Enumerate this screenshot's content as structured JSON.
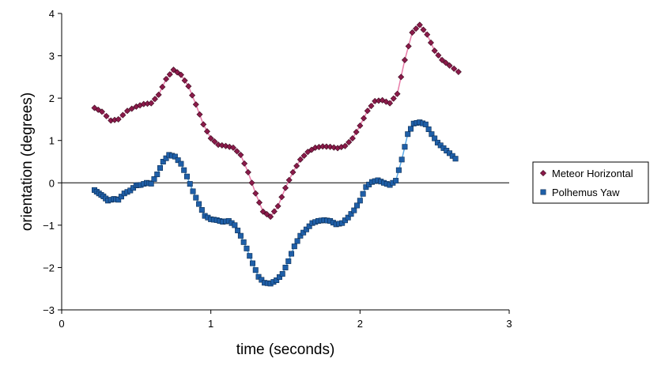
{
  "chart_data": {
    "type": "scatter",
    "title": "",
    "xlabel": "time (seconds)",
    "ylabel": "orientation (degrees)",
    "xlim": [
      0,
      3
    ],
    "ylim": [
      -3,
      4
    ],
    "x_ticks": [
      0,
      1,
      2,
      3
    ],
    "y_ticks": [
      -3,
      -2,
      -1,
      0,
      1,
      2,
      3,
      4
    ],
    "x_tick_labels": [
      "0",
      "1",
      "2",
      "3"
    ],
    "y_tick_labels": [
      "−3",
      "−2",
      "−1",
      "0",
      "1",
      "2",
      "3",
      "4"
    ],
    "grid": false,
    "zero_line": true,
    "legend_position": "right",
    "series": [
      {
        "name": "Meteor Horizontal",
        "marker": "diamond",
        "color": "#8b1a4a",
        "line_color": "#e87ba8",
        "points": [
          [
            0.22,
            1.77
          ],
          [
            0.27,
            1.68
          ],
          [
            0.33,
            1.47
          ],
          [
            0.38,
            1.5
          ],
          [
            0.44,
            1.7
          ],
          [
            0.5,
            1.8
          ],
          [
            0.55,
            1.86
          ],
          [
            0.6,
            1.88
          ],
          [
            0.65,
            2.08
          ],
          [
            0.7,
            2.45
          ],
          [
            0.75,
            2.67
          ],
          [
            0.8,
            2.55
          ],
          [
            0.85,
            2.28
          ],
          [
            0.9,
            1.85
          ],
          [
            0.95,
            1.38
          ],
          [
            1.0,
            1.05
          ],
          [
            1.05,
            0.9
          ],
          [
            1.1,
            0.87
          ],
          [
            1.15,
            0.83
          ],
          [
            1.2,
            0.66
          ],
          [
            1.25,
            0.25
          ],
          [
            1.3,
            -0.25
          ],
          [
            1.35,
            -0.68
          ],
          [
            1.4,
            -0.8
          ],
          [
            1.45,
            -0.55
          ],
          [
            1.5,
            -0.12
          ],
          [
            1.55,
            0.25
          ],
          [
            1.6,
            0.55
          ],
          [
            1.65,
            0.73
          ],
          [
            1.7,
            0.83
          ],
          [
            1.75,
            0.86
          ],
          [
            1.8,
            0.85
          ],
          [
            1.85,
            0.82
          ],
          [
            1.9,
            0.87
          ],
          [
            1.95,
            1.05
          ],
          [
            2.0,
            1.35
          ],
          [
            2.05,
            1.7
          ],
          [
            2.1,
            1.93
          ],
          [
            2.15,
            1.95
          ],
          [
            2.2,
            1.88
          ],
          [
            2.25,
            2.1
          ],
          [
            2.3,
            2.9
          ],
          [
            2.35,
            3.55
          ],
          [
            2.4,
            3.73
          ],
          [
            2.45,
            3.5
          ],
          [
            2.5,
            3.12
          ],
          [
            2.55,
            2.9
          ],
          [
            2.6,
            2.77
          ],
          [
            2.66,
            2.62
          ]
        ]
      },
      {
        "name": "Polhemus Yaw",
        "marker": "square",
        "color": "#1f5fa8",
        "line_color": "#5aa9e6",
        "points": [
          [
            0.22,
            -0.17
          ],
          [
            0.25,
            -0.25
          ],
          [
            0.28,
            -0.32
          ],
          [
            0.31,
            -0.42
          ],
          [
            0.35,
            -0.38
          ],
          [
            0.38,
            -0.4
          ],
          [
            0.42,
            -0.25
          ],
          [
            0.46,
            -0.18
          ],
          [
            0.5,
            -0.06
          ],
          [
            0.53,
            -0.05
          ],
          [
            0.57,
            0.0
          ],
          [
            0.6,
            -0.02
          ],
          [
            0.64,
            0.2
          ],
          [
            0.68,
            0.5
          ],
          [
            0.72,
            0.66
          ],
          [
            0.76,
            0.62
          ],
          [
            0.8,
            0.45
          ],
          [
            0.84,
            0.15
          ],
          [
            0.88,
            -0.2
          ],
          [
            0.92,
            -0.5
          ],
          [
            0.96,
            -0.78
          ],
          [
            1.0,
            -0.86
          ],
          [
            1.04,
            -0.88
          ],
          [
            1.08,
            -0.92
          ],
          [
            1.12,
            -0.9
          ],
          [
            1.16,
            -1.0
          ],
          [
            1.2,
            -1.25
          ],
          [
            1.24,
            -1.55
          ],
          [
            1.28,
            -1.9
          ],
          [
            1.32,
            -2.22
          ],
          [
            1.36,
            -2.36
          ],
          [
            1.4,
            -2.38
          ],
          [
            1.44,
            -2.3
          ],
          [
            1.48,
            -2.15
          ],
          [
            1.52,
            -1.85
          ],
          [
            1.56,
            -1.5
          ],
          [
            1.6,
            -1.25
          ],
          [
            1.64,
            -1.1
          ],
          [
            1.68,
            -0.95
          ],
          [
            1.72,
            -0.9
          ],
          [
            1.76,
            -0.88
          ],
          [
            1.8,
            -0.9
          ],
          [
            1.84,
            -0.98
          ],
          [
            1.88,
            -0.95
          ],
          [
            1.92,
            -0.82
          ],
          [
            1.96,
            -0.65
          ],
          [
            2.0,
            -0.42
          ],
          [
            2.04,
            -0.1
          ],
          [
            2.08,
            0.02
          ],
          [
            2.12,
            0.06
          ],
          [
            2.16,
            0.0
          ],
          [
            2.2,
            -0.05
          ],
          [
            2.24,
            0.05
          ],
          [
            2.28,
            0.55
          ],
          [
            2.32,
            1.15
          ],
          [
            2.36,
            1.4
          ],
          [
            2.4,
            1.43
          ],
          [
            2.44,
            1.38
          ],
          [
            2.48,
            1.15
          ],
          [
            2.52,
            0.95
          ],
          [
            2.56,
            0.82
          ],
          [
            2.6,
            0.7
          ],
          [
            2.64,
            0.57
          ]
        ]
      }
    ]
  }
}
